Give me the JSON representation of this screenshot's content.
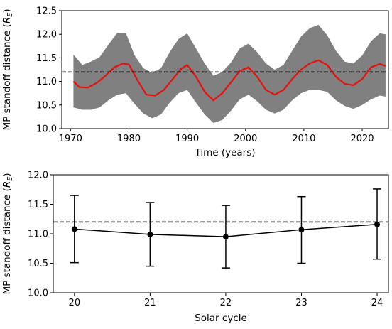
{
  "chart_data": [
    {
      "type": "line",
      "xlabel": "Time (years)",
      "ylabel_text": "MP standoff distance (",
      "ylabel_unit_main": "R",
      "ylabel_unit_sub": "E",
      "ylabel_close": ")",
      "xlim": [
        1968.5,
        2024.5
      ],
      "ylim": [
        10.0,
        12.5
      ],
      "xticks": [
        1970,
        1980,
        1990,
        2000,
        2010,
        2020
      ],
      "xtick_labels": [
        "1970",
        "1980",
        "1990",
        "2000",
        "2010",
        "2020"
      ],
      "yticks": [
        10.0,
        10.5,
        11.0,
        11.5,
        12.0,
        12.5
      ],
      "ytick_labels": [
        "10.0",
        "10.5",
        "11.0",
        "11.5",
        "12.0",
        "12.5"
      ],
      "reference_line": 11.2,
      "series": [
        {
          "kind": "band",
          "color": "#808080",
          "x": [
            1970.5,
            1972,
            1973.5,
            1975,
            1976.5,
            1978,
            1979.5,
            1981,
            1982.5,
            1984,
            1985.5,
            1987,
            1988.5,
            1990,
            1991.5,
            1993,
            1994.5,
            1996,
            1997.5,
            1999,
            2000.5,
            2002,
            2003.5,
            2005,
            2006.5,
            2008,
            2009.5,
            2011,
            2012.5,
            2014,
            2015.5,
            2017,
            2018.5,
            2020,
            2021.5,
            2023,
            2024
          ],
          "upper": [
            11.57,
            11.35,
            11.42,
            11.52,
            11.78,
            12.03,
            12.02,
            11.55,
            11.28,
            11.18,
            11.28,
            11.62,
            11.9,
            12.02,
            11.7,
            11.38,
            11.12,
            11.2,
            11.4,
            11.7,
            11.8,
            11.62,
            11.38,
            11.25,
            11.35,
            11.65,
            11.95,
            12.13,
            12.2,
            11.98,
            11.65,
            11.42,
            11.38,
            11.55,
            11.85,
            12.02,
            12.0
          ],
          "lower": [
            10.45,
            10.4,
            10.4,
            10.45,
            10.6,
            10.72,
            10.75,
            10.52,
            10.32,
            10.22,
            10.3,
            10.55,
            10.75,
            10.82,
            10.55,
            10.3,
            10.12,
            10.18,
            10.38,
            10.62,
            10.72,
            10.58,
            10.4,
            10.32,
            10.4,
            10.6,
            10.75,
            10.82,
            10.82,
            10.78,
            10.6,
            10.48,
            10.42,
            10.5,
            10.62,
            10.7,
            10.68
          ]
        },
        {
          "kind": "line",
          "color": "#e8100c",
          "x": [
            1970.5,
            1971.5,
            1973,
            1974.5,
            1976,
            1977.5,
            1979,
            1980,
            1981.5,
            1983,
            1984.5,
            1986,
            1987.5,
            1989,
            1990,
            1991.5,
            1993,
            1994.5,
            1996,
            1997.5,
            1999,
            2000.5,
            2002,
            2003.5,
            2005,
            2006.5,
            2008,
            2009.5,
            2011,
            2012.5,
            2014,
            2015.5,
            2017,
            2018.5,
            2020,
            2021.5,
            2023,
            2024
          ],
          "y": [
            11.0,
            10.88,
            10.87,
            10.97,
            11.12,
            11.3,
            11.38,
            11.36,
            11.02,
            10.72,
            10.7,
            10.82,
            11.05,
            11.27,
            11.35,
            11.1,
            10.78,
            10.6,
            10.75,
            10.98,
            11.22,
            11.3,
            11.1,
            10.82,
            10.72,
            10.82,
            11.05,
            11.25,
            11.38,
            11.45,
            11.35,
            11.1,
            10.95,
            10.92,
            11.05,
            11.3,
            11.37,
            11.33
          ]
        }
      ]
    },
    {
      "type": "line",
      "xlabel": "Solar cycle",
      "ylabel_text": "MP standoff distance (",
      "ylabel_unit_main": "R",
      "ylabel_unit_sub": "E",
      "ylabel_close": ")",
      "xlim": [
        19.72,
        24.15
      ],
      "ylim": [
        10.0,
        12.0
      ],
      "xticks": [
        20,
        21,
        22,
        23,
        24
      ],
      "xtick_labels": [
        "20",
        "21",
        "22",
        "23",
        "24"
      ],
      "yticks": [
        10.0,
        10.5,
        11.0,
        11.5,
        12.0
      ],
      "ytick_labels": [
        "10.0",
        "10.5",
        "11.0",
        "11.5",
        "12.0"
      ],
      "reference_line": 11.2,
      "series": [
        {
          "kind": "errorbar",
          "color": "#000000",
          "x": [
            20,
            21,
            22,
            23,
            24
          ],
          "y": [
            11.08,
            10.99,
            10.95,
            11.07,
            11.16
          ],
          "yerr_low": [
            10.51,
            10.45,
            10.42,
            10.5,
            10.57
          ],
          "yerr_high": [
            11.65,
            11.53,
            11.48,
            11.63,
            11.76
          ]
        }
      ]
    }
  ]
}
